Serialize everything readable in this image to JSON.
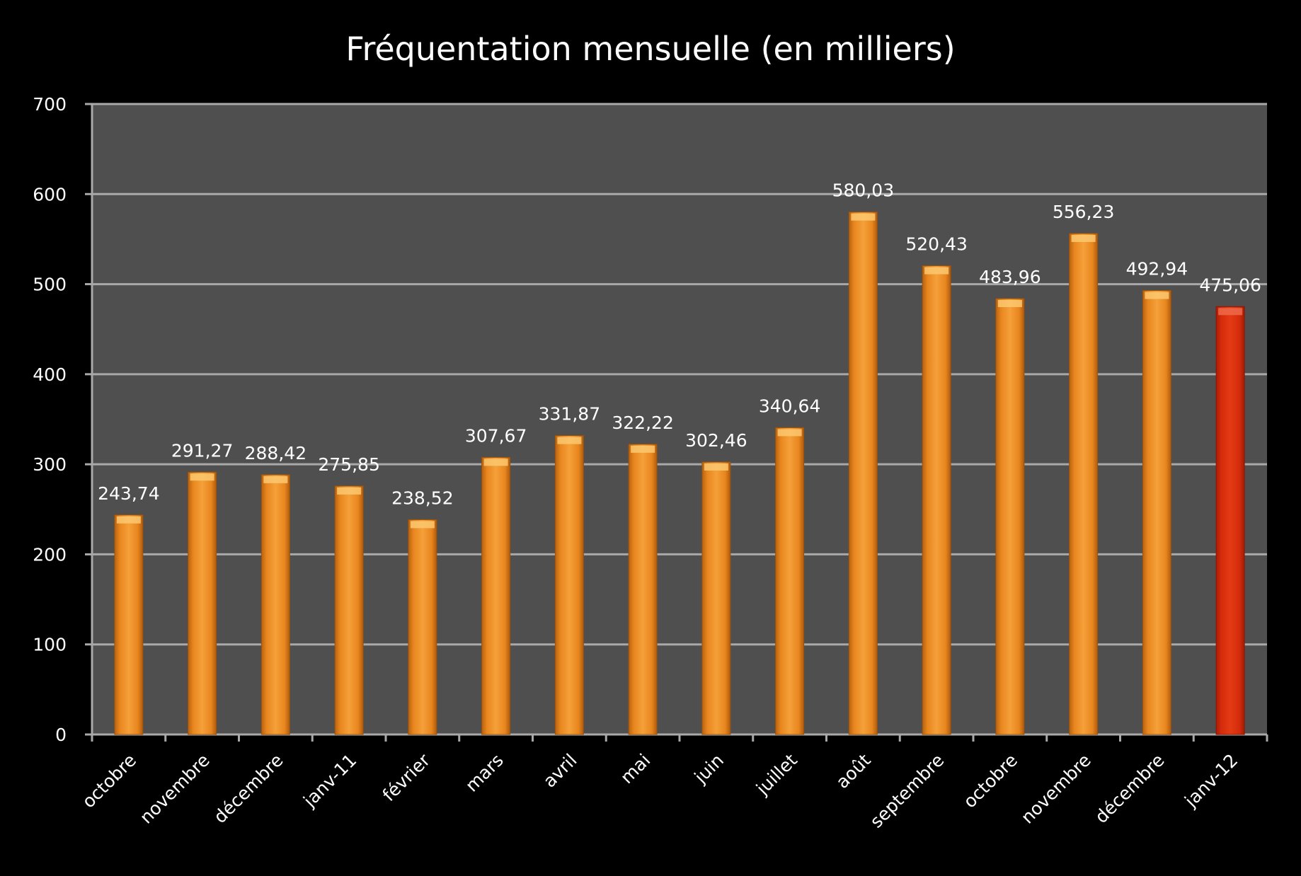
{
  "chart_data": {
    "type": "bar",
    "title": "Fréquentation mensuelle (en milliers)",
    "xlabel": "",
    "ylabel": "",
    "ylim": [
      0,
      700
    ],
    "yticks": [
      "0",
      "100",
      "200",
      "300",
      "400",
      "500",
      "600",
      "700"
    ],
    "grid": true,
    "legend": "none",
    "categories": [
      "octobre",
      "novembre",
      "décembre",
      "janv-11",
      "février",
      "mars",
      "avril",
      "mai",
      "juin",
      "juillet",
      "août",
      "septembre",
      "octobre",
      "novembre",
      "décembre",
      "janv-12"
    ],
    "values": [
      243.74,
      291.27,
      288.42,
      275.85,
      238.52,
      307.67,
      331.87,
      322.22,
      302.46,
      340.64,
      580.03,
      520.43,
      483.96,
      556.23,
      492.94,
      475.06
    ],
    "data_labels": [
      "243,74",
      "291,27",
      "288,42",
      "275,85",
      "238,52",
      "307,67",
      "331,87",
      "322,22",
      "302,46",
      "340,64",
      "580,03",
      "520,43",
      "483,96",
      "556,23",
      "492,94",
      "475,06"
    ],
    "colors": {
      "background": "#000000",
      "plot_area": "#4f4f4f",
      "grid": "#a9a9a9",
      "bar": "#e88a22",
      "highlight_bar": "#d62b0c",
      "text": "#ffffff"
    },
    "highlight_index": 15
  }
}
